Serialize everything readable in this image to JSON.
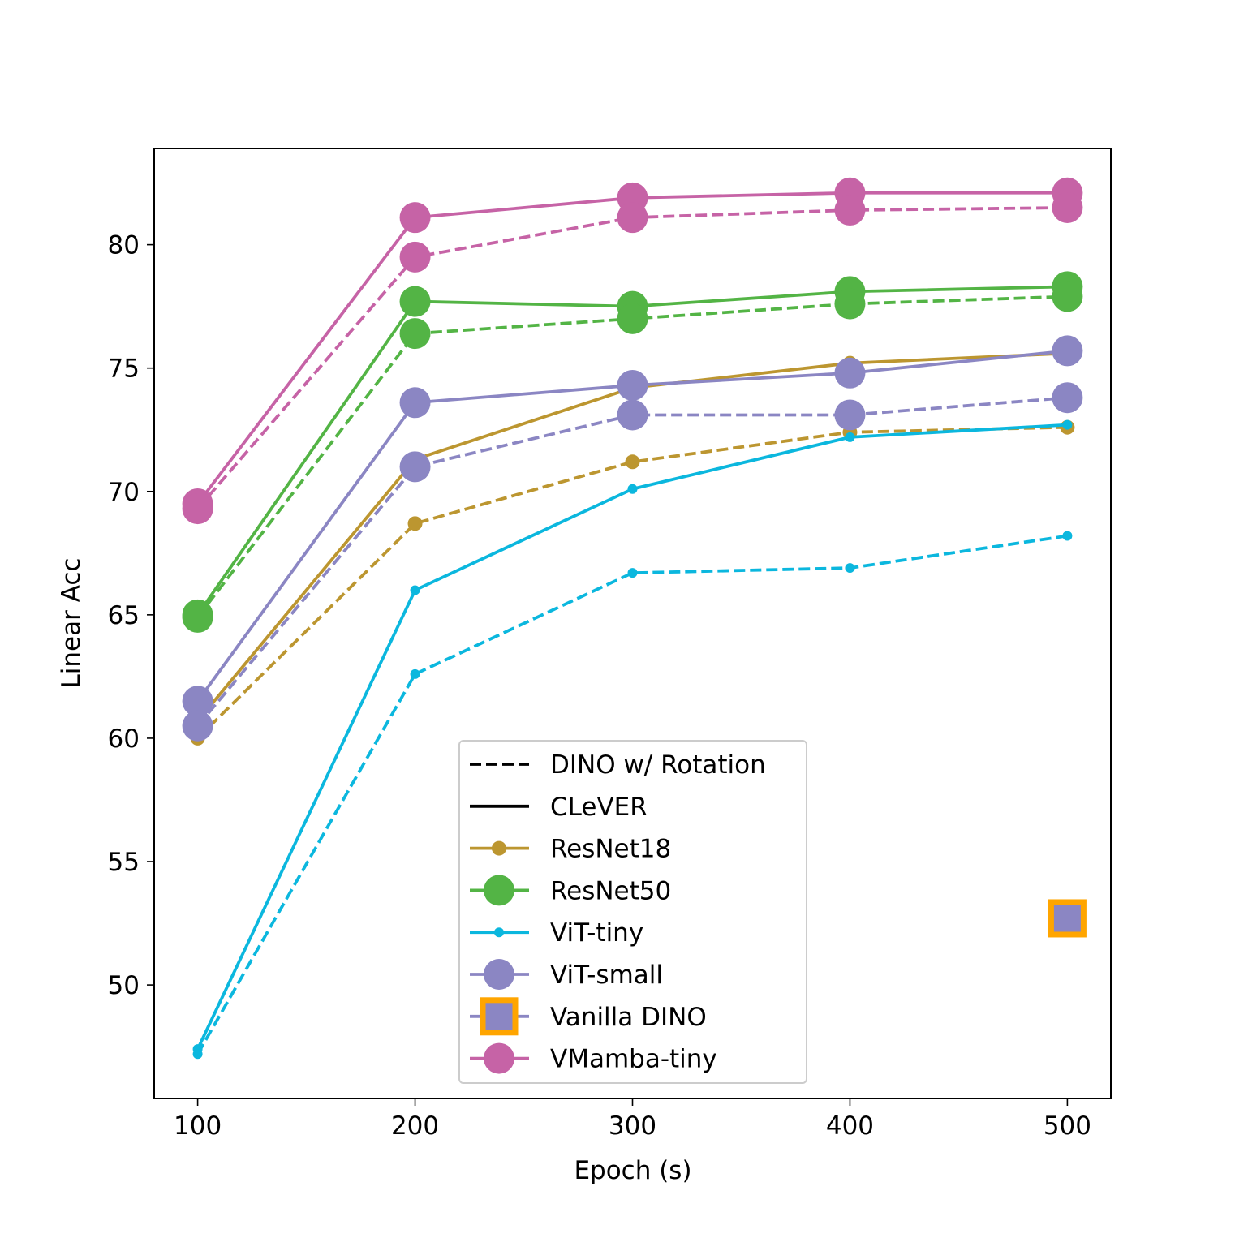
{
  "chart_data": {
    "type": "line",
    "title": "",
    "xlabel": "Epoch (s)",
    "ylabel": "Linear Acc",
    "xlim": [
      80,
      520
    ],
    "ylim": [
      45.4,
      83.9
    ],
    "grid": false,
    "legend_position": "lower-center",
    "x_ticks": [
      "100",
      "200",
      "300",
      "400",
      "500"
    ],
    "y_ticks": [
      "50",
      "55",
      "60",
      "65",
      "70",
      "75",
      "80"
    ],
    "x": [
      100,
      200,
      300,
      400,
      500
    ],
    "legend": [
      {
        "label": "DINO w/ Rotation",
        "style": "dashed",
        "color": "#000000",
        "marker": "none"
      },
      {
        "label": "CLeVER",
        "style": "solid",
        "color": "#000000",
        "marker": "none"
      },
      {
        "label": "ResNet18",
        "style": "solid",
        "color": "#BC9630",
        "marker": "small"
      },
      {
        "label": "ResNet50",
        "style": "solid",
        "color": "#53B445",
        "marker": "large"
      },
      {
        "label": "ViT-tiny",
        "style": "solid",
        "color": "#0BB7DE",
        "marker": "tiny"
      },
      {
        "label": "ViT-small",
        "style": "solid",
        "color": "#8B86C3",
        "marker": "large"
      },
      {
        "label": "Vanilla DINO",
        "style": "solid",
        "color": "#8B86C3",
        "marker": "square"
      },
      {
        "label": "VMamba-tiny",
        "style": "solid",
        "color": "#C663A6",
        "marker": "large"
      }
    ],
    "series": [
      {
        "name": "ResNet18",
        "variant": "CLeVER",
        "color": "#BC9630",
        "marker": "small",
        "values": [
          60.7,
          71.3,
          74.2,
          75.2,
          75.6
        ]
      },
      {
        "name": "ResNet18",
        "variant": "DINO w/ Rotation",
        "color": "#BC9630",
        "marker": "small",
        "values": [
          60.0,
          68.7,
          71.2,
          72.4,
          72.6
        ]
      },
      {
        "name": "ResNet50",
        "variant": "CLeVER",
        "color": "#53B445",
        "marker": "large",
        "values": [
          65.0,
          77.7,
          77.5,
          78.1,
          78.3
        ]
      },
      {
        "name": "ResNet50",
        "variant": "DINO w/ Rotation",
        "color": "#53B445",
        "marker": "large",
        "values": [
          64.9,
          76.4,
          77.0,
          77.6,
          77.9
        ]
      },
      {
        "name": "ViT-tiny",
        "variant": "CLeVER",
        "color": "#0BB7DE",
        "marker": "tiny",
        "values": [
          47.4,
          66.0,
          70.1,
          72.2,
          72.7
        ]
      },
      {
        "name": "ViT-tiny",
        "variant": "DINO w/ Rotation",
        "color": "#0BB7DE",
        "marker": "tiny",
        "values": [
          47.2,
          62.6,
          66.7,
          66.9,
          68.2
        ]
      },
      {
        "name": "ViT-small",
        "variant": "CLeVER",
        "color": "#8B86C3",
        "marker": "large",
        "values": [
          61.5,
          73.6,
          74.3,
          74.8,
          75.7
        ]
      },
      {
        "name": "ViT-small",
        "variant": "DINO w/ Rotation",
        "color": "#8B86C3",
        "marker": "large",
        "values": [
          60.5,
          71.0,
          73.1,
          73.1,
          73.8
        ]
      },
      {
        "name": "VMamba-tiny",
        "variant": "CLeVER",
        "color": "#C663A6",
        "marker": "large",
        "values": [
          69.5,
          81.1,
          81.9,
          82.1,
          82.1
        ]
      },
      {
        "name": "VMamba-tiny",
        "variant": "DINO w/ Rotation",
        "color": "#C663A6",
        "marker": "large",
        "values": [
          69.3,
          79.5,
          81.1,
          81.4,
          81.5
        ]
      }
    ],
    "points": [
      {
        "name": "Vanilla DINO",
        "x": 500,
        "y": 52.7,
        "color": "#8B86C3",
        "edge_color": "#FFA500",
        "marker": "square"
      }
    ]
  }
}
